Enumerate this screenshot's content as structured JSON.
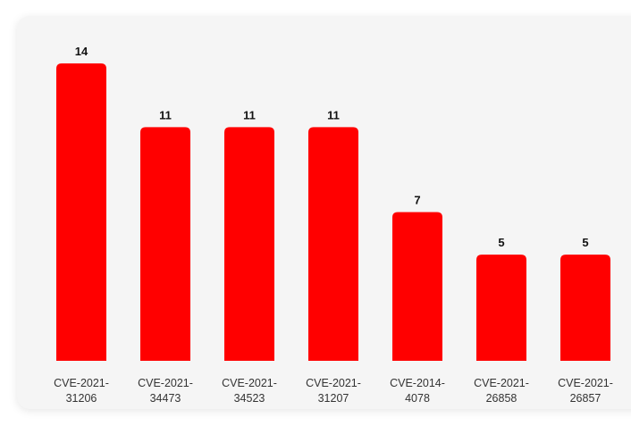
{
  "chart_data": {
    "type": "bar",
    "title": "",
    "xlabel": "",
    "ylabel": "",
    "categories": [
      [
        "CVE-2021-",
        "31206"
      ],
      [
        "CVE-2021-",
        "34473"
      ],
      [
        "CVE-2021-",
        "34523"
      ],
      [
        "CVE-2021-",
        "31207"
      ],
      [
        "CVE-2014-",
        "4078"
      ],
      [
        "CVE-2021-",
        "26858"
      ],
      [
        "CVE-2021-",
        "26857"
      ]
    ],
    "values": [
      14,
      11,
      11,
      11,
      7,
      5,
      5
    ],
    "ylim": [
      0,
      14
    ],
    "grid": false,
    "legend": "none",
    "colors": {
      "bar": "#ff0000",
      "card_background": "#f5f5f5",
      "value_text": "#111111",
      "tick_text": "#333333"
    }
  }
}
